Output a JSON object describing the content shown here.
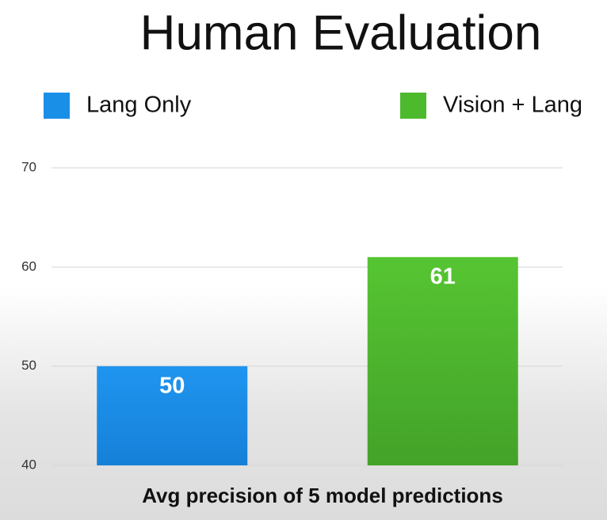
{
  "chart_data": {
    "type": "bar",
    "title": "Human Evaluation",
    "x_label": "Avg precision of 5 model predictions",
    "categories": [
      null
    ],
    "series": [
      {
        "name": "Lang Only",
        "color": "#1a8fe8",
        "values": [
          50
        ]
      },
      {
        "name": "Vision + Lang",
        "color": "#4dba2e",
        "values": [
          61
        ]
      }
    ],
    "ylim": [
      40,
      70
    ],
    "yticks": [
      40,
      50,
      60,
      70
    ],
    "grid": true,
    "legend": "top"
  }
}
